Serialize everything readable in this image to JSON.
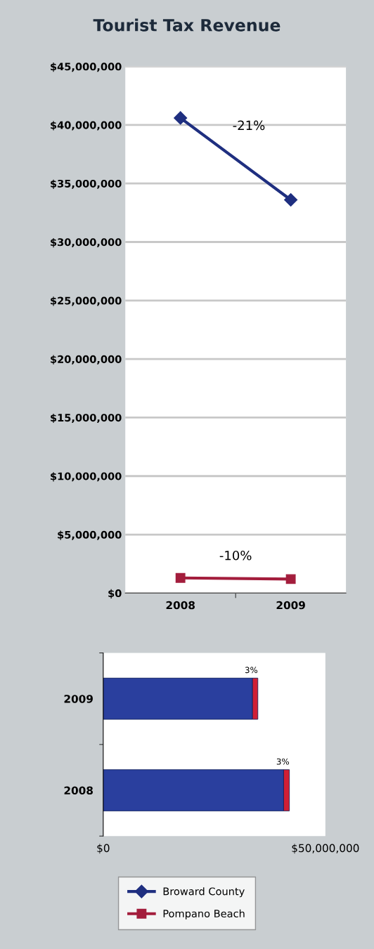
{
  "chart_data": [
    {
      "type": "line",
      "title": "Tourist Tax Revenue",
      "categories": [
        "2008",
        "2009"
      ],
      "series": [
        {
          "name": "Broward County",
          "color": "#1f2f80",
          "values": [
            40600000,
            33600000
          ],
          "marker": "diamond"
        },
        {
          "name": "Pompano Beach",
          "color": "#a31d3c",
          "values": [
            1300000,
            1200000
          ],
          "marker": "square"
        }
      ],
      "ylim": [
        0,
        45000000
      ],
      "yticks": [
        {
          "value": 0,
          "label": "$0"
        },
        {
          "value": 5000000,
          "label": "$5,000,000"
        },
        {
          "value": 10000000,
          "label": "$10,000,000"
        },
        {
          "value": 15000000,
          "label": "$15,000,000"
        },
        {
          "value": 20000000,
          "label": "$20,000,000"
        },
        {
          "value": 25000000,
          "label": "$25,000,000"
        },
        {
          "value": 30000000,
          "label": "$30,000,000"
        },
        {
          "value": 35000000,
          "label": "$35,000,000"
        },
        {
          "value": 40000000,
          "label": "$40,000,000"
        },
        {
          "value": 45000000,
          "label": "$45,000,000"
        }
      ],
      "grid": "y",
      "legend": "bottom",
      "annotations": [
        "-21%",
        "-10%"
      ]
    },
    {
      "type": "bar",
      "orientation": "horizontal",
      "stacked": true,
      "categories": [
        "2009",
        "2008"
      ],
      "series": [
        {
          "color": "#2a3f9e",
          "values": [
            33600000,
            40600000
          ]
        },
        {
          "color": "#d01f35",
          "values": [
            1200000,
            1300000
          ]
        }
      ],
      "xlim": [
        0,
        50000000
      ],
      "xticks": [
        {
          "value": 0,
          "label": "$0"
        },
        {
          "value": 50000000,
          "label": "$50,000,000"
        }
      ],
      "grid": false,
      "annotations": [
        "3%",
        "3%"
      ]
    }
  ]
}
